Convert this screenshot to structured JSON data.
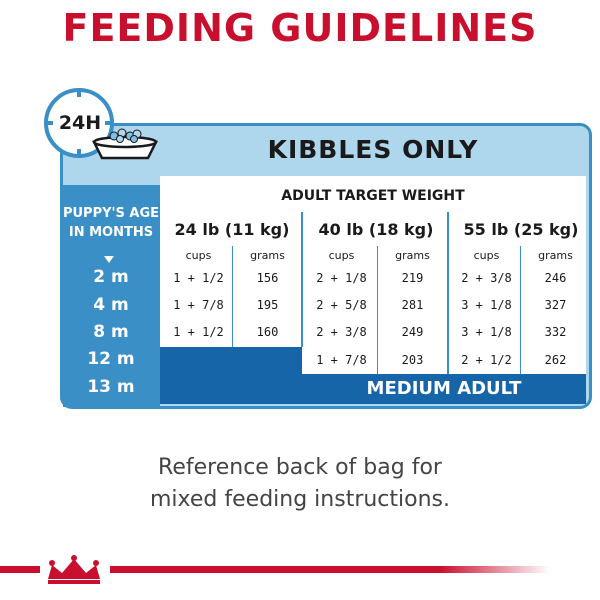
{
  "title": "FEEDING GUIDELINES",
  "clock_label": "24H",
  "section_title": "KIBBLES ONLY",
  "age_header": [
    "PUPPY'S AGE",
    "IN MONTHS"
  ],
  "target_header": "ADULT TARGET WEIGHT",
  "weights": [
    "24 lb (11 kg)",
    "40 lb (18 kg)",
    "55 lb (25 kg)"
  ],
  "units": [
    "cups",
    "grams",
    "cups",
    "grams",
    "cups",
    "grams"
  ],
  "ages": [
    "2 m",
    "4 m",
    "8 m",
    "12 m",
    "13 m"
  ],
  "rows": [
    [
      "1 + 1/2",
      "156",
      "2 + 1/8",
      "219",
      "2 + 3/8",
      "246"
    ],
    [
      "1 + 7/8",
      "195",
      "2 + 5/8",
      "281",
      "3 + 1/8",
      "327"
    ],
    [
      "1 + 1/2",
      "160",
      "2 + 3/8",
      "249",
      "3 + 1/8",
      "332"
    ],
    [
      "",
      "",
      "1 + 7/8",
      "203",
      "2 + 1/2",
      "262"
    ]
  ],
  "footer_label": "MEDIUM ADULT",
  "note": [
    "Reference back of bag for",
    "mixed feeding instructions."
  ],
  "colors": {
    "brand_red": "#c8102e",
    "blue": "#3a8fc6",
    "dark_blue": "#1565a8",
    "light_blue": "#aed6ec"
  },
  "icons": [
    "clock-icon",
    "food-bowl-icon",
    "crown-logo-icon"
  ]
}
